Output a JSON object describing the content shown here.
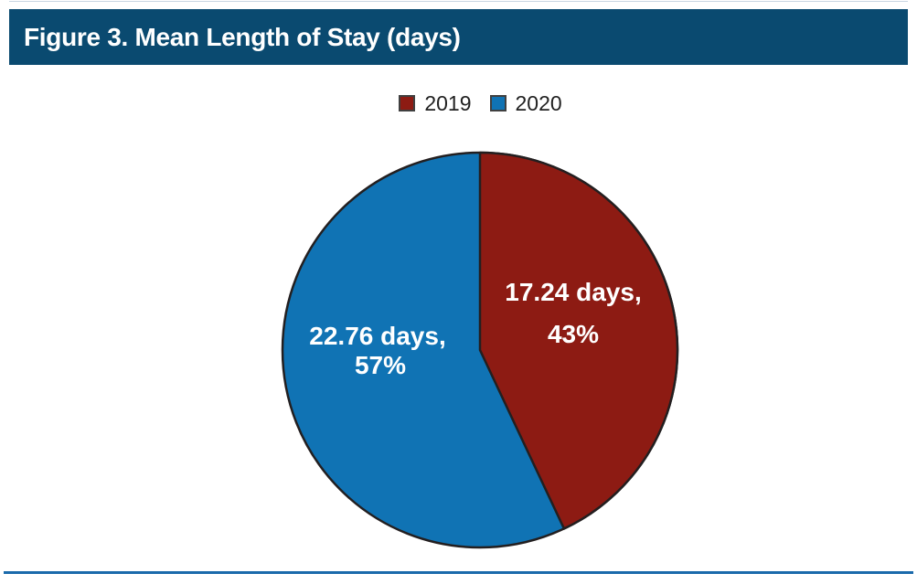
{
  "header": {
    "title": "Figure 3. Mean Length of Stay (days)",
    "background_color": "#0a4a70",
    "text_color": "#ffffff"
  },
  "chart_data": {
    "type": "pie",
    "title": "Figure 3. Mean Length of Stay (days)",
    "legend_position": "top-center",
    "start_angle_deg": 0,
    "direction": "clockwise",
    "outline_color": "#231f20",
    "series": [
      {
        "name": "2019",
        "days": 17.24,
        "percent": 43,
        "color": "#8d1b13",
        "label_line1": "17.24 days,",
        "label_line2": "43%",
        "label_color": "#ffffff"
      },
      {
        "name": "2020",
        "days": 22.76,
        "percent": 57,
        "color": "#1073b4",
        "label_line1": "22.76 days,",
        "label_line2": "57%",
        "label_color": "#ffffff"
      }
    ]
  },
  "footer": {
    "rule_color": "#1a6aab"
  }
}
